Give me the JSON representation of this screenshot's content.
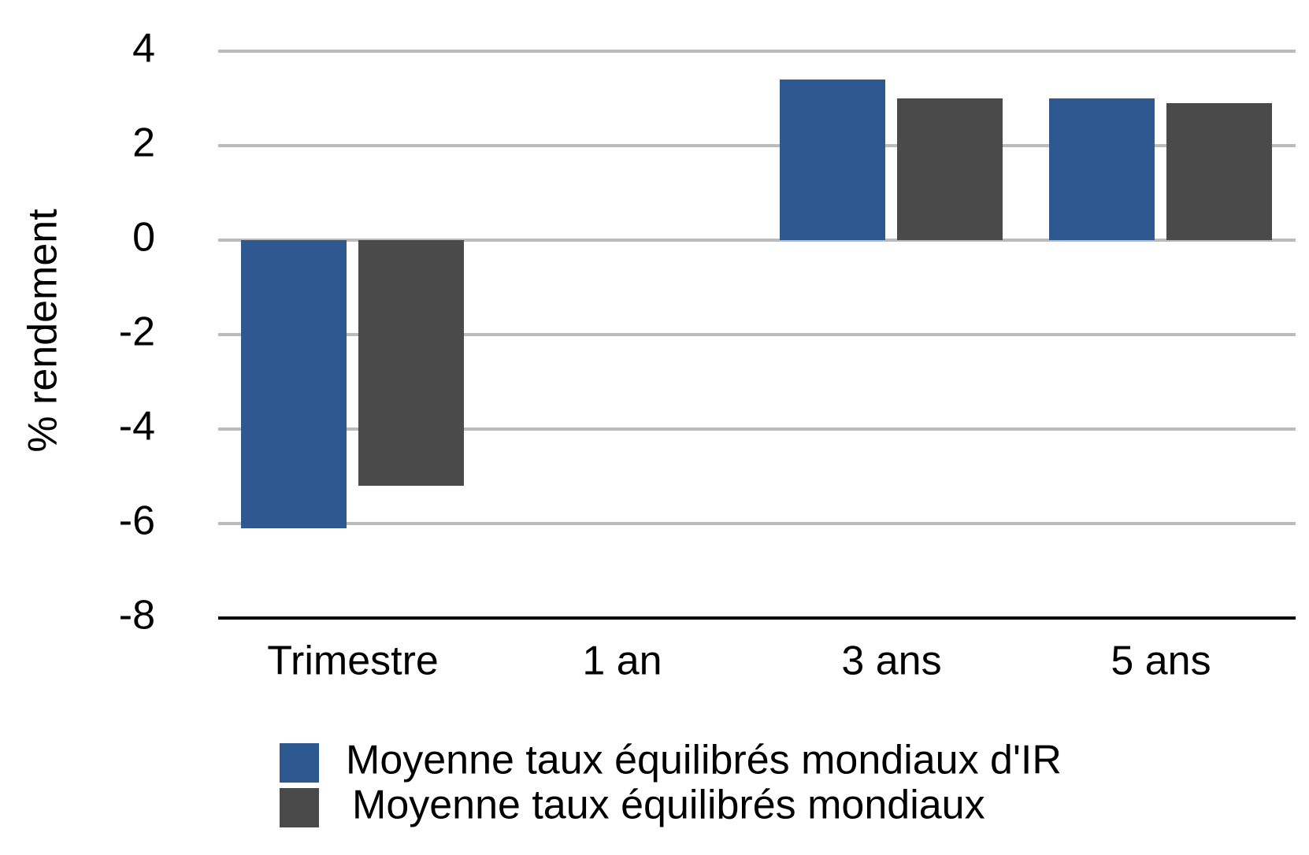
{
  "chart_data": {
    "type": "bar",
    "y_label": "% rendement",
    "categories": [
      "Trimestre",
      "1 an",
      "3 ans",
      "5 ans"
    ],
    "series": [
      {
        "name": "Moyenne taux équilibrés mondiaux d'IR",
        "color": "#2d5890",
        "values": [
          -6.1,
          null,
          3.4,
          3.0
        ]
      },
      {
        "name": "Moyenne taux équilibrés mondiaux",
        "color": "#4a4a4a",
        "values": [
          -5.2,
          null,
          3.0,
          2.9
        ]
      }
    ],
    "ylim": [
      -8,
      4
    ],
    "yticks": [
      -8,
      -6,
      -4,
      -2,
      0,
      2,
      4
    ],
    "grid": true
  }
}
